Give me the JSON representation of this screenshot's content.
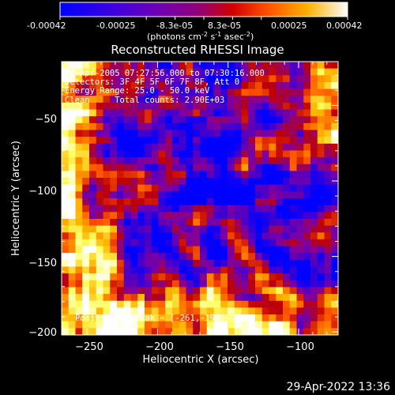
{
  "colorbar": {
    "ticks": [
      "-0.00042",
      "-0.00025",
      "-8.3e-05",
      "8.3e-05",
      "0.00025",
      "0.00042"
    ],
    "units_prefix": "(photons cm",
    "units_exp1": "-2",
    "units_mid": " s",
    "units_exp2": "-1",
    "units_mid2": " asec",
    "units_exp3": "-2",
    "units_suffix": ")"
  },
  "chart_data": {
    "type": "heatmap",
    "title": "Reconstructed RHESSI Image",
    "xlabel": "Heliocentric X (arcsec)",
    "ylabel": "Heliocentric Y (arcsec)",
    "xlim": [
      -268,
      -72
    ],
    "ylim": [
      -202,
      -21
    ],
    "x_ticks": [
      -250,
      -200,
      -150,
      -100
    ],
    "y_ticks": [
      -50,
      -100,
      -150,
      -200
    ],
    "x_tick_labels": [
      "−250",
      "−200",
      "−150",
      "−100"
    ],
    "y_tick_labels": [
      "−50",
      "−100",
      "−150",
      "−200"
    ],
    "colormap": [
      "#0000ff",
      "#4b00c8",
      "#8000a0",
      "#c00000",
      "#ff5a00",
      "#ffb400",
      "#ffff60",
      "#ffffff"
    ],
    "annotations": [
      "30-Apr-2005 07:27:56.000 to 07:30:16.000",
      "Detectors: 3F 4F 5F 6F 7F 8F, Att 0",
      "Energy Range: 25.0 - 50.0 keV",
      "Clean     Total counts: 2.90E+03"
    ],
    "peak_label": "Position of Peak = [-261,-195]"
  },
  "footer": {
    "timestamp": "29-Apr-2022 13:36"
  }
}
